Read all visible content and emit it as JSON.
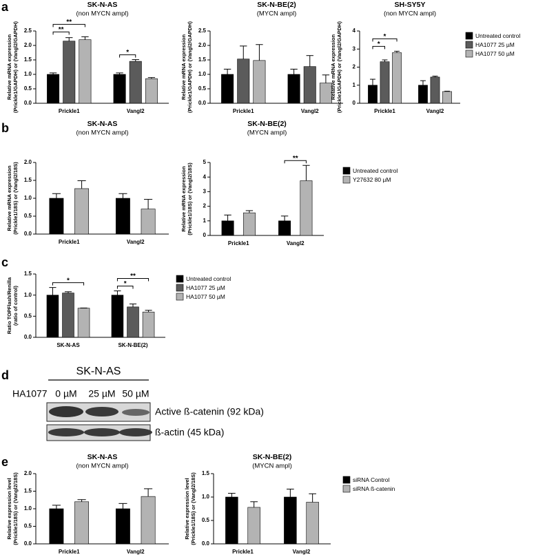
{
  "panel_labels": [
    "a",
    "b",
    "c",
    "d",
    "e"
  ],
  "blot": {
    "cell_line": "SK-N-AS",
    "treatment": "HA1077",
    "lanes": [
      "0 µM",
      "25 µM",
      "50 µM"
    ],
    "bands": [
      "Active ß-catenin (92 kDa)",
      "ß-actin (45 kDa)"
    ]
  },
  "chart_data": [
    {
      "type": "bar",
      "title": "SK-N-AS",
      "subtitle": "(non MYCN ampl)",
      "y_label": [
        "Relative mRNA expression",
        "(Prickle1/GAPDH) or (Vangl2/GAPDH)"
      ],
      "categories": [
        "Prickle1",
        "Vangl2"
      ],
      "series": [
        {
          "color": "#000000",
          "values": [
            1.0,
            1.0
          ],
          "errors": [
            0.05,
            0.05
          ]
        },
        {
          "color": "#5b5b5b",
          "values": [
            2.15,
            1.45
          ],
          "errors": [
            0.12,
            0.06
          ]
        },
        {
          "color": "#b3b3b3",
          "values": [
            2.2,
            0.85
          ],
          "errors": [
            0.1,
            0.04
          ]
        }
      ],
      "ylim": [
        0,
        2.5
      ],
      "yticks": [
        {
          "value": 0,
          "label": "0.0"
        },
        {
          "value": 0.5,
          "label": "0.5"
        },
        {
          "value": 1,
          "label": "1.0"
        },
        {
          "value": 1.5,
          "label": "1.5"
        },
        {
          "value": 2,
          "label": "2.0"
        },
        {
          "value": 2.5,
          "label": "2.5"
        }
      ],
      "annotations": [
        {
          "text": "**",
          "category": 0,
          "series": [
            0,
            1
          ]
        },
        {
          "text": "**",
          "category": 0,
          "series": [
            0,
            2
          ]
        },
        {
          "text": "*",
          "category": 1,
          "series": [
            0,
            1
          ]
        }
      ]
    },
    {
      "type": "bar",
      "title": "SK-N-BE(2)",
      "subtitle": "(MYCN ampl)",
      "y_label": [
        "Relative mRNA expression",
        "(Prickle1/GAPDH) or (Vangl2/GAPDH)"
      ],
      "categories": [
        "Prickle1",
        "Vangl2"
      ],
      "series": [
        {
          "color": "#000000",
          "values": [
            1.0,
            1.0
          ],
          "errors": [
            0.18,
            0.18
          ]
        },
        {
          "color": "#5b5b5b",
          "values": [
            1.53,
            1.27
          ],
          "errors": [
            0.45,
            0.38
          ]
        },
        {
          "color": "#b3b3b3",
          "values": [
            1.48,
            0.7
          ],
          "errors": [
            0.55,
            0.28
          ]
        }
      ],
      "ylim": [
        0,
        2.5
      ],
      "yticks": [
        {
          "value": 0,
          "label": "0.0"
        },
        {
          "value": 0.5,
          "label": "0.5"
        },
        {
          "value": 1,
          "label": "1.0"
        },
        {
          "value": 1.5,
          "label": "1.5"
        },
        {
          "value": 2,
          "label": "2.0"
        },
        {
          "value": 2.5,
          "label": "2.5"
        }
      ],
      "annotations": []
    },
    {
      "type": "bar",
      "title": "SH-SY5Y",
      "subtitle": "(non MYCN ampl)",
      "y_label": [
        "Relative mRNA expression",
        "(Prickle1/GAPDH) or (Vangl2/GAPDH)"
      ],
      "categories": [
        "Prickle1",
        "Vangl2"
      ],
      "series": [
        {
          "name": "Untreated control",
          "color": "#000000",
          "values": [
            1.0,
            1.0
          ],
          "errors": [
            0.33,
            0.25
          ]
        },
        {
          "name": "HA1077 25 µM",
          "color": "#5b5b5b",
          "values": [
            2.3,
            1.45
          ],
          "errors": [
            0.1,
            0.05
          ]
        },
        {
          "name": "HA1077 50 µM",
          "color": "#b3b3b3",
          "values": [
            2.8,
            0.65
          ],
          "errors": [
            0.08,
            0.02
          ]
        }
      ],
      "ylim": [
        0,
        4
      ],
      "yticks": [
        0,
        1,
        2,
        3,
        4
      ],
      "annotations": [
        {
          "text": "*",
          "category": 0,
          "series": [
            0,
            1
          ]
        },
        {
          "text": "*",
          "category": 0,
          "series": [
            0,
            2
          ]
        }
      ]
    },
    {
      "type": "bar",
      "title": "SK-N-AS",
      "subtitle": "(non MYCN ampl)",
      "y_label": [
        "Relative mRNA expression",
        "(Prickle1/18S) or (Vangl2/18S)"
      ],
      "categories": [
        "Prickle1",
        "Vangl2"
      ],
      "series": [
        {
          "color": "#000000",
          "values": [
            1.0,
            1.0
          ],
          "errors": [
            0.13,
            0.13
          ]
        },
        {
          "color": "#b3b3b3",
          "values": [
            1.27,
            0.7
          ],
          "errors": [
            0.22,
            0.27
          ]
        }
      ],
      "ylim": [
        0,
        2
      ],
      "yticks": [
        {
          "value": 0,
          "label": "0.0"
        },
        {
          "value": 0.5,
          "label": "0.5"
        },
        {
          "value": 1,
          "label": "1.0"
        },
        {
          "value": 1.5,
          "label": "1.5"
        },
        {
          "value": 2,
          "label": "2.0"
        }
      ],
      "annotations": []
    },
    {
      "type": "bar",
      "title": "SK-N-BE(2)",
      "subtitle": "(MYCN ampl)",
      "y_label": [
        "Relative mRNA expression",
        "(Prickle1/18S) or (Vangl2/18S)"
      ],
      "categories": [
        "Prickle1",
        "Vangl2"
      ],
      "series": [
        {
          "name": "Untreated control",
          "color": "#000000",
          "values": [
            1.0,
            1.0
          ],
          "errors": [
            0.4,
            0.33
          ]
        },
        {
          "name": "Y27632 80 µM",
          "color": "#b3b3b3",
          "values": [
            1.55,
            3.75
          ],
          "errors": [
            0.15,
            1.05
          ]
        }
      ],
      "ylim": [
        0,
        5
      ],
      "yticks": [
        0,
        1,
        2,
        3,
        4,
        5
      ],
      "annotations": [
        {
          "text": "**",
          "category": 1,
          "series": [
            0,
            1
          ]
        }
      ]
    },
    {
      "type": "bar",
      "y_label": [
        "Ratio TOPFlash/Renilla",
        "(ratio of control)"
      ],
      "categories": [
        "SK-N-AS",
        "SK-N-BE(2)"
      ],
      "series": [
        {
          "name": "Untreated control",
          "color": "#000000",
          "values": [
            1.0,
            1.0
          ],
          "errors": [
            0.18,
            0.1
          ]
        },
        {
          "name": "HA1077 25 µM",
          "color": "#5b5b5b",
          "values": [
            1.05,
            0.72
          ],
          "errors": [
            0.03,
            0.07
          ]
        },
        {
          "name": "HA1077 50 µM",
          "color": "#b3b3b3",
          "values": [
            0.69,
            0.6
          ],
          "errors": [
            0.005,
            0.04
          ]
        }
      ],
      "ylim": [
        0,
        1.5
      ],
      "yticks": [
        {
          "value": 0,
          "label": "0.0"
        },
        {
          "value": 0.5,
          "label": "0.5"
        },
        {
          "value": 1,
          "label": "1.0"
        },
        {
          "value": 1.5,
          "label": "1.5"
        }
      ],
      "annotations": [
        {
          "text": "*",
          "category": 0,
          "series": [
            0,
            2
          ]
        },
        {
          "text": "*",
          "category": 1,
          "series": [
            0,
            1
          ]
        },
        {
          "text": "**",
          "category": 1,
          "series": [
            0,
            2
          ]
        }
      ]
    },
    {
      "type": "bar",
      "title": "SK-N-AS",
      "subtitle": "(non MYCN ampl)",
      "y_label": [
        "Relative expression level",
        "(Prickle1/18S) or (Vangl2/18S)"
      ],
      "categories": [
        "Prickle1",
        "Vangl2"
      ],
      "series": [
        {
          "color": "#000000",
          "values": [
            1.0,
            1.0
          ],
          "errors": [
            0.1,
            0.15
          ]
        },
        {
          "color": "#b3b3b3",
          "values": [
            1.2,
            1.35
          ],
          "errors": [
            0.06,
            0.22
          ]
        }
      ],
      "ylim": [
        0,
        2
      ],
      "yticks": [
        {
          "value": 0,
          "label": "0.0"
        },
        {
          "value": 0.5,
          "label": "0.5"
        },
        {
          "value": 1,
          "label": "1.0"
        },
        {
          "value": 1.5,
          "label": "1.5"
        },
        {
          "value": 2,
          "label": "2.0"
        }
      ],
      "annotations": []
    },
    {
      "type": "bar",
      "title": "SK-N-BE(2)",
      "subtitle": "(MYCN ampl)",
      "y_label": [
        "Relative expression level",
        "(Prickle1/18S) or (Vangl2/18S)"
      ],
      "categories": [
        "Prickle1",
        "Vangl2"
      ],
      "series": [
        {
          "name": "siRNA Control",
          "color": "#000000",
          "values": [
            1.0,
            1.0
          ],
          "errors": [
            0.08,
            0.17
          ]
        },
        {
          "name": "siRNA ß-catenin",
          "color": "#b3b3b3",
          "values": [
            0.78,
            0.89
          ],
          "errors": [
            0.12,
            0.18
          ]
        }
      ],
      "ylim": [
        0,
        1.5
      ],
      "yticks": [
        {
          "value": 0,
          "label": "0.0"
        },
        {
          "value": 0.5,
          "label": "0.5"
        },
        {
          "value": 1,
          "label": "1.0"
        },
        {
          "value": 1.5,
          "label": "1.5"
        }
      ],
      "annotations": []
    }
  ]
}
